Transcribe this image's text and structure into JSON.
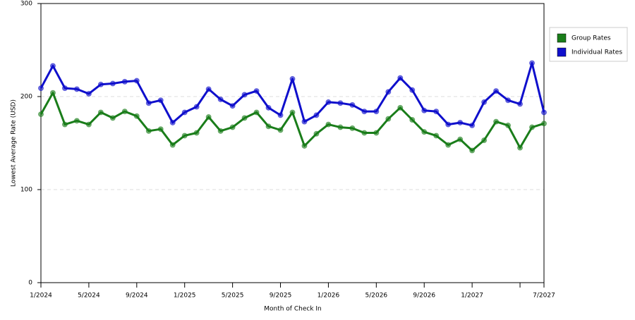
{
  "chart_data": {
    "type": "line",
    "x_label": "Month of Check In",
    "y_label": "Lowest Average Rate (USD)",
    "categories": [
      "1/2024",
      null,
      null,
      null,
      "5/2024",
      null,
      null,
      null,
      "9/2024",
      null,
      null,
      null,
      "1/2025",
      null,
      null,
      null,
      "5/2025",
      null,
      null,
      null,
      "9/2025",
      null,
      null,
      null,
      "1/2026",
      null,
      null,
      null,
      "5/2026",
      null,
      null,
      null,
      "9/2026",
      null,
      null,
      null,
      "1/2027",
      null,
      null,
      null,
      null,
      null,
      "7/2027"
    ],
    "series": [
      {
        "name": "Group Rates",
        "color": "#1a7d1a",
        "values": [
          181,
          204,
          170,
          174,
          170,
          183,
          177,
          184,
          179,
          163,
          165,
          148,
          158,
          161,
          178,
          163,
          167,
          177,
          183,
          168,
          164,
          183,
          147,
          160,
          170,
          167,
          166,
          161,
          161,
          176,
          188,
          175,
          162,
          158,
          148,
          154,
          142,
          153,
          173,
          169,
          145,
          167,
          171
        ]
      },
      {
        "name": "Individual Rates",
        "color": "#0f0fcc",
        "values": [
          209,
          233,
          209,
          208,
          203,
          213,
          214,
          216,
          217,
          193,
          196,
          172,
          183,
          189,
          208,
          197,
          190,
          202,
          206,
          188,
          180,
          219,
          173,
          180,
          194,
          193,
          191,
          184,
          184,
          205,
          220,
          207,
          185,
          184,
          170,
          172,
          169,
          194,
          206,
          196,
          192,
          236,
          183
        ]
      }
    ],
    "ylim": [
      0,
      300
    ],
    "yticks": [
      0,
      100,
      200,
      300
    ],
    "grid": true,
    "legend": "right"
  }
}
